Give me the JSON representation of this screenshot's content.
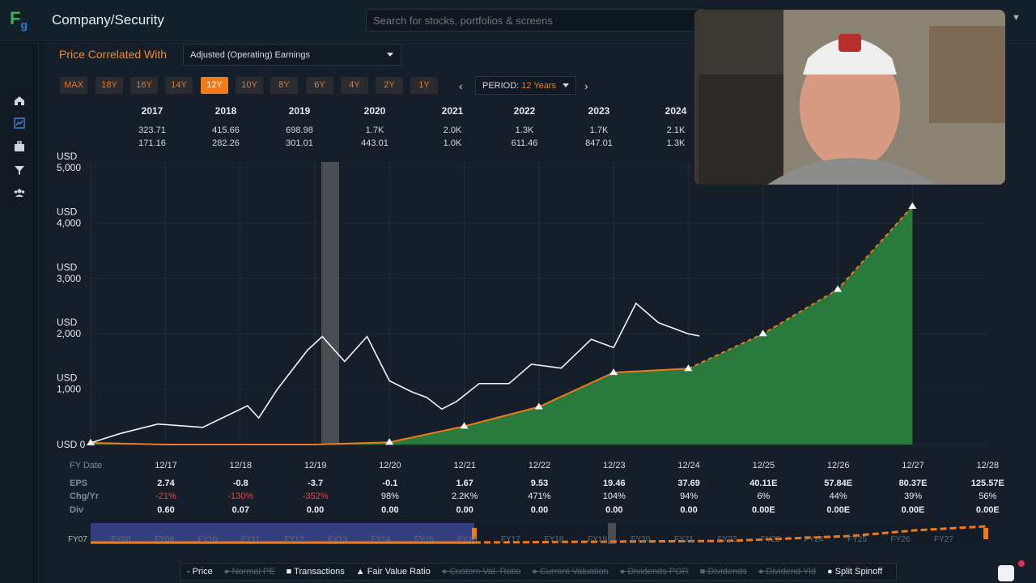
{
  "header": {
    "logo_text": "F",
    "logo_sub": "g",
    "title": "Company/Security",
    "search_placeholder": "Search for stocks, portfolios & screens"
  },
  "sidebar": {
    "icons": [
      "home-icon",
      "chart-icon",
      "briefcase-icon",
      "filter-icon",
      "users-icon"
    ]
  },
  "controls": {
    "price_correlated_label": "Price Correlated With",
    "correlated_value": "Adjusted (Operating) Earnings",
    "ranges": [
      "MAX",
      "18Y",
      "16Y",
      "14Y",
      "12Y",
      "10Y",
      "8Y",
      "6Y",
      "4Y",
      "2Y",
      "1Y"
    ],
    "active_range": "12Y",
    "period_label": "PERIOD:",
    "period_value": "12 Years"
  },
  "year_summary": [
    {
      "year": "2017",
      "v1": "323.71",
      "v2": "171.16"
    },
    {
      "year": "2018",
      "v1": "415.66",
      "v2": "282.26"
    },
    {
      "year": "2019",
      "v1": "698.98",
      "v2": "301.01"
    },
    {
      "year": "2020",
      "v1": "1.7K",
      "v2": "443.01"
    },
    {
      "year": "2021",
      "v1": "2.0K",
      "v2": "1.0K"
    },
    {
      "year": "2022",
      "v1": "1.3K",
      "v2": "611.46"
    },
    {
      "year": "2023",
      "v1": "1.7K",
      "v2": "847.01"
    },
    {
      "year": "2024",
      "v1": "2.1K",
      "v2": "1.3K"
    }
  ],
  "chart_data": {
    "type": "line",
    "y_axis_labels": [
      "USD 0",
      "USD\n1,000",
      "USD\n2,000",
      "USD\n3,000",
      "USD\n4,000",
      "USD\n5,000"
    ],
    "ylim": [
      0,
      5000
    ],
    "x_labels": [
      "12/17",
      "12/18",
      "12/19",
      "12/20",
      "12/21",
      "12/22",
      "12/23",
      "12/24",
      "12/25",
      "12/26",
      "12/27",
      "12/28"
    ],
    "fair_value": [
      30,
      0,
      0,
      0,
      40,
      330,
      680,
      1300,
      1370,
      2000,
      2800,
      4300
    ],
    "price_approx": [
      [
        0,
        30
      ],
      [
        0.4,
        200
      ],
      [
        0.9,
        370
      ],
      [
        1.5,
        310
      ],
      [
        2.1,
        700
      ],
      [
        2.25,
        480
      ],
      [
        2.5,
        1000
      ],
      [
        2.9,
        1700
      ],
      [
        3.1,
        1950
      ],
      [
        3.4,
        1500
      ],
      [
        3.7,
        1950
      ],
      [
        4.0,
        1150
      ],
      [
        4.3,
        950
      ],
      [
        4.5,
        850
      ],
      [
        4.7,
        640
      ],
      [
        4.9,
        780
      ],
      [
        5.2,
        1100
      ],
      [
        5.6,
        1100
      ],
      [
        5.9,
        1450
      ],
      [
        6.3,
        1380
      ],
      [
        6.7,
        1900
      ],
      [
        7.0,
        1750
      ],
      [
        7.3,
        2550
      ],
      [
        7.6,
        2200
      ],
      [
        8.0,
        2000
      ],
      [
        8.15,
        1960
      ]
    ],
    "legend": [
      "Price",
      "Normal PE",
      "Transactions",
      "Fair Value Ratio",
      "Custom Val. Ratio",
      "Current Valuation",
      "Dividends POR",
      "Dividends",
      "Dividend Yld",
      "Split Spinoff"
    ]
  },
  "table": {
    "fy_label": "FY Date",
    "row_labels": [
      "EPS",
      "Chg/Yr",
      "Div"
    ],
    "eps": [
      "2.74",
      "-0.8",
      "-3.7",
      "-0.1",
      "1.67",
      "9.53",
      "19.46",
      "37.69",
      "40.11E",
      "57.84E",
      "80.37E",
      "125.57E"
    ],
    "chg": [
      "-21%",
      "-130%",
      "-352%",
      "98%",
      "2.2K%",
      "471%",
      "104%",
      "94%",
      "6%",
      "44%",
      "39%",
      "56%"
    ],
    "div": [
      "0.60",
      "0.07",
      "0.00",
      "0.00",
      "0.00",
      "0.00",
      "0.00",
      "0.00",
      "0.00E",
      "0.00E",
      "0.00E",
      "0.00E"
    ]
  },
  "navigator": {
    "labels": [
      "FY07",
      "FY08",
      "FY09",
      "FY10",
      "FY11",
      "FY12",
      "FY13",
      "FY14",
      "FY15",
      "FY16",
      "FY17",
      "FY18",
      "FY19",
      "FY20",
      "FY21",
      "FY22",
      "FY23",
      "FY24",
      "FY25",
      "FY26",
      "FY27"
    ]
  },
  "colors": {
    "accent": "#f07a1a",
    "fair_value_fill": "#2e7d40",
    "negative": "#e0484d",
    "background": "#161f29"
  }
}
